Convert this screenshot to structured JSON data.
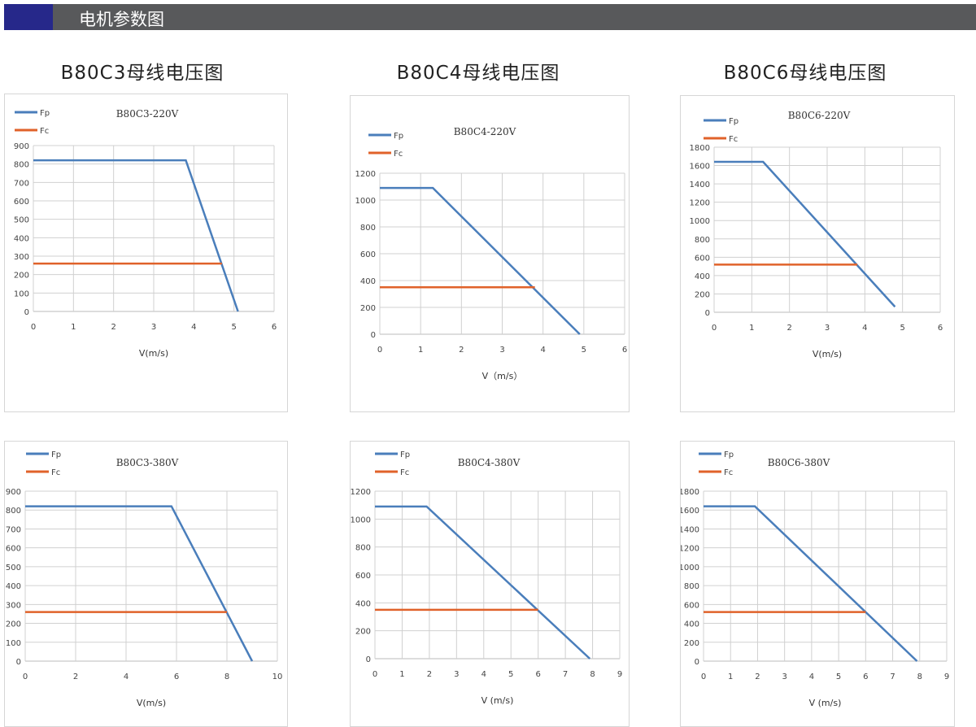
{
  "header": {
    "title": "电机参数图",
    "accent": "#26288a",
    "bar_color": "#58595b"
  },
  "group_titles": [
    "B80C3母线电压图",
    "B80C4母线电压图",
    "B80C6母线电压图"
  ],
  "colors": {
    "Fp": "#4a7ebb",
    "Fc": "#e0622a"
  },
  "chart_data": [
    {
      "type": "line",
      "title": "B80C3-220V",
      "xlabel": "V(m/s)",
      "xlim": [
        0,
        6
      ],
      "xstep": 1,
      "ylim": [
        0,
        900
      ],
      "ystep": 100,
      "grid": true,
      "legend": "top-left",
      "series": [
        {
          "name": "Fp",
          "x": [
            0,
            3.8,
            5.1
          ],
          "y": [
            820,
            820,
            0
          ]
        },
        {
          "name": "Fc",
          "x": [
            0,
            4.7
          ],
          "y": [
            260,
            260
          ]
        }
      ]
    },
    {
      "type": "line",
      "title": "B80C4-220V",
      "xlabel": "V（m/s）",
      "xlim": [
        0,
        6
      ],
      "xstep": 1,
      "ylim": [
        0,
        1200
      ],
      "ystep": 200,
      "grid": true,
      "legend": "top-left",
      "series": [
        {
          "name": "Fp",
          "x": [
            0,
            1.3,
            4.9
          ],
          "y": [
            1090,
            1090,
            0
          ]
        },
        {
          "name": "Fc",
          "x": [
            0,
            3.8
          ],
          "y": [
            350,
            350
          ]
        }
      ]
    },
    {
      "type": "line",
      "title": "B80C6-220V",
      "xlabel": "V(m/s)",
      "xlim": [
        0,
        6
      ],
      "xstep": 1,
      "ylim": [
        0,
        1800
      ],
      "ystep": 200,
      "grid": true,
      "legend": "top-left",
      "series": [
        {
          "name": "Fp",
          "x": [
            0,
            1.3,
            4.8
          ],
          "y": [
            1640,
            1640,
            60
          ]
        },
        {
          "name": "Fc",
          "x": [
            0,
            3.8
          ],
          "y": [
            520,
            520
          ]
        }
      ]
    },
    {
      "type": "line",
      "title": "B80C3-380V",
      "xlabel": "V(m/s)",
      "xlim": [
        0,
        10
      ],
      "xstep": 2,
      "ylim": [
        0,
        900
      ],
      "ystep": 100,
      "grid": true,
      "legend": "top-left",
      "series": [
        {
          "name": "Fp",
          "x": [
            0,
            5.8,
            9
          ],
          "y": [
            820,
            820,
            0
          ]
        },
        {
          "name": "Fc",
          "x": [
            0,
            8
          ],
          "y": [
            260,
            260
          ]
        }
      ]
    },
    {
      "type": "line",
      "title": "B80C4-380V",
      "xlabel": "V (m/s)",
      "xlim": [
        0,
        9
      ],
      "xstep": 1,
      "ylim": [
        0,
        1200
      ],
      "ystep": 200,
      "grid": true,
      "legend": "top-left",
      "series": [
        {
          "name": "Fp",
          "x": [
            0,
            1.9,
            7.9
          ],
          "y": [
            1090,
            1090,
            0
          ]
        },
        {
          "name": "Fc",
          "x": [
            0,
            6
          ],
          "y": [
            350,
            350
          ]
        }
      ]
    },
    {
      "type": "line",
      "title": "B80C6-380V",
      "xlabel": "V (m/s)",
      "xlim": [
        0,
        9
      ],
      "xstep": 1,
      "ylim": [
        0,
        1800
      ],
      "ystep": 200,
      "grid": true,
      "legend": "top-left",
      "series": [
        {
          "name": "Fp",
          "x": [
            0,
            1.9,
            7.9
          ],
          "y": [
            1640,
            1640,
            0
          ]
        },
        {
          "name": "Fc",
          "x": [
            0,
            6
          ],
          "y": [
            520,
            520
          ]
        }
      ]
    }
  ]
}
